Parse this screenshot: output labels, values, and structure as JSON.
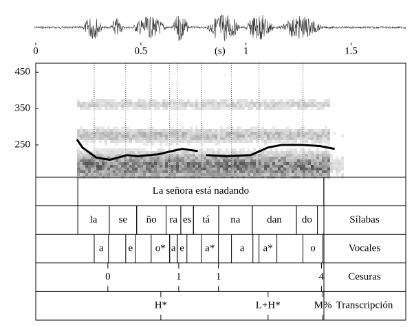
{
  "chart_data": {
    "type": "line",
    "x": [
      0.196,
      0.222,
      0.288,
      0.353,
      0.435,
      0.484,
      0.582,
      0.663,
      0.696,
      0.771,
      null,
      0.81,
      0.908,
      1.023,
      1.105,
      1.17,
      1.268,
      1.35,
      1.422
    ],
    "series": [
      {
        "color": "#000000",
        "values": [
          265,
          243,
          215,
          209,
          222,
          219,
          224,
          235,
          239,
          233,
          null,
          222,
          219,
          222,
          243,
          250,
          250,
          247,
          239
        ]
      }
    ],
    "xlim": [
      0,
      1.76
    ],
    "xticks": [
      0,
      0.5,
      1,
      1.5
    ],
    "ylim": [
      161,
      475
    ],
    "yticks": [
      250,
      350,
      450
    ],
    "annotations": [
      {
        "text": "(s)",
        "x": 0.876
      }
    ],
    "tiers": [
      {
        "intervals": [
          {
            "start": 0.2,
            "end": 1.37,
            "text": "La señora está nadando"
          }
        ]
      },
      {
        "name": "Sílabas",
        "intervals": [
          {
            "start": 0.2,
            "end": 0.35,
            "text": "la"
          },
          {
            "start": 0.35,
            "end": 0.48,
            "text": "se"
          },
          {
            "start": 0.48,
            "end": 0.62,
            "text": "ño"
          },
          {
            "start": 0.62,
            "end": 0.69,
            "text": "ra"
          },
          {
            "start": 0.69,
            "end": 0.75,
            "text": "es"
          },
          {
            "start": 0.75,
            "end": 0.87,
            "text": "tá"
          },
          {
            "start": 0.87,
            "end": 1.03,
            "text": "na"
          },
          {
            "start": 1.03,
            "end": 1.24,
            "text": "dan"
          },
          {
            "start": 1.24,
            "end": 1.34,
            "text": "do"
          }
        ]
      },
      {
        "name": "Vocales",
        "intervals": [
          {
            "start": 0.278,
            "end": 0.346,
            "text": "a"
          },
          {
            "start": 0.428,
            "end": 0.474,
            "text": "e"
          },
          {
            "start": 0.549,
            "end": 0.637,
            "text": "o*"
          },
          {
            "start": 0.637,
            "end": 0.673,
            "text": "a"
          },
          {
            "start": 0.673,
            "end": 0.719,
            "text": "e"
          },
          {
            "start": 0.788,
            "end": 0.869,
            "text": "a*"
          },
          {
            "start": 0.931,
            "end": 1.033,
            "text": "a"
          },
          {
            "start": 1.062,
            "end": 1.147,
            "text": "a*"
          },
          {
            "start": 1.271,
            "end": 1.366,
            "text": "o"
          }
        ]
      },
      {
        "name": "Cesuras",
        "points": [
          {
            "time": 0.343,
            "text": "0"
          },
          {
            "time": 0.68,
            "text": "1"
          },
          {
            "time": 0.869,
            "text": "1"
          },
          {
            "time": 1.359,
            "text": "4"
          }
        ]
      },
      {
        "name": "Transcripción",
        "points": [
          {
            "time": 0.595,
            "text": "H*"
          },
          {
            "time": 1.105,
            "text": "L+H*"
          },
          {
            "time": 1.366,
            "text": "M%"
          }
        ]
      }
    ]
  }
}
